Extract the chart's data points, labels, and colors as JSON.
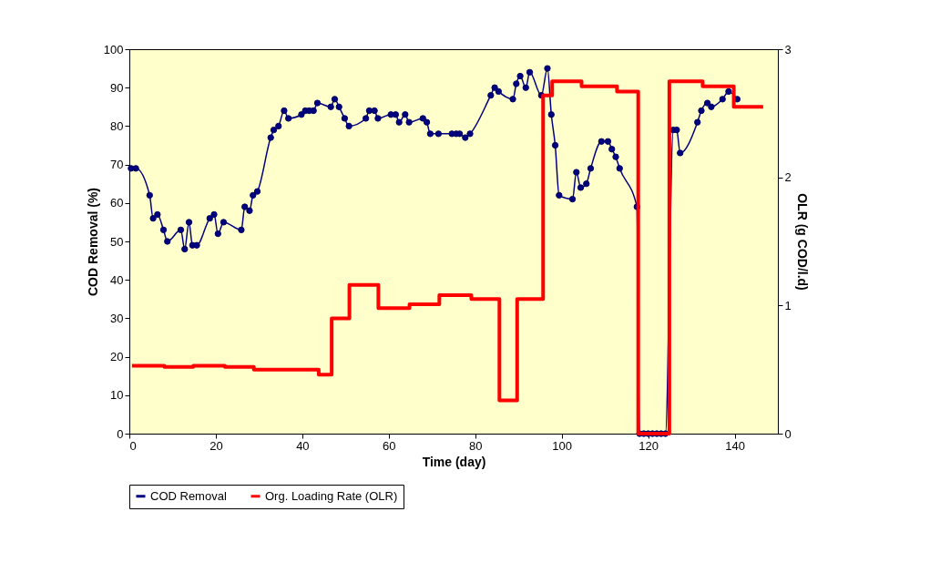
{
  "chart_data": {
    "type": "line",
    "xlabel": "Time (day)",
    "ylabel": "COD Removal (%)",
    "y2label": "OLR (g COD/l.d)",
    "xlim": [
      0,
      150
    ],
    "xticks": [
      0,
      20,
      40,
      60,
      80,
      100,
      120,
      140
    ],
    "ylim": [
      0,
      100
    ],
    "yticks": [
      0,
      10,
      20,
      30,
      40,
      50,
      60,
      70,
      80,
      90,
      100
    ],
    "y2lim": [
      0,
      3
    ],
    "y2ticks": [
      0,
      1,
      2,
      3
    ],
    "grid": false,
    "legend": "bottom",
    "series": [
      {
        "name": "COD Removal",
        "color": "#000080",
        "marker": "circle",
        "x": [
          0.4,
          1.5,
          4.7,
          5.5,
          6.5,
          7.9,
          8.8,
          11.9,
          12.8,
          13.8,
          14.6,
          15.6,
          18.6,
          19.6,
          20.5,
          21.8,
          25.9,
          26.7,
          27.8,
          28.6,
          29.6,
          32.7,
          33.4,
          34.5,
          35.8,
          36.8,
          39.8,
          40.7,
          41.6,
          42.6,
          43.5,
          46.6,
          47.5,
          48.5,
          49.8,
          50.8,
          54.7,
          55.5,
          56.7,
          57.5,
          60.5,
          61.6,
          62.4,
          63.8,
          64.7,
          67.9,
          68.8,
          69.6,
          71.5,
          74.6,
          75.6,
          76.4,
          77.7,
          78.8,
          83.6,
          84.5,
          85.4,
          88.7,
          89.5,
          90.4,
          91.7,
          92.6,
          95.3,
          96.7,
          97.6,
          98.5,
          99.4,
          102.5,
          103.4,
          104.4,
          105.7,
          106.7,
          109.2,
          110.7,
          111.6,
          112.5,
          113.4,
          117.4,
          118,
          119,
          120,
          121,
          122,
          123,
          124,
          125.8,
          126.6,
          127.4,
          131.4,
          132.3,
          133.7,
          134.6,
          137.2,
          138.6,
          140.6
        ],
        "values": [
          69,
          69,
          62,
          56,
          57,
          53,
          50,
          53,
          48,
          55,
          49,
          49,
          56,
          57,
          52,
          55,
          53,
          59,
          58,
          62,
          63,
          77,
          79,
          80,
          84,
          82,
          83,
          84,
          84,
          84,
          86,
          85,
          87,
          85,
          82,
          80,
          82,
          84,
          84,
          82,
          83,
          83,
          81,
          83,
          81,
          82,
          81,
          78,
          78,
          78,
          78,
          78,
          77,
          78,
          88,
          90,
          89,
          87,
          91,
          93,
          90,
          94,
          88,
          95,
          83,
          75,
          62,
          61,
          68,
          64,
          65,
          69,
          76,
          76,
          74,
          72,
          69,
          59,
          0,
          0,
          0,
          0,
          0,
          0,
          0,
          79,
          79,
          73,
          81,
          84,
          86,
          85,
          87,
          89,
          87
        ]
      },
      {
        "name": "Org. Loading Rate (OLR)",
        "type": "step",
        "axis": "y2",
        "color": "#ff0000",
        "x": [
          0.6,
          8.1,
          14.8,
          22.1,
          28.8,
          43.8,
          46.8,
          50.9,
          57.6,
          64.8,
          71.7,
          79.1,
          85.6,
          89.7,
          95.7,
          97.8,
          104.6,
          112.8,
          117.7,
          124.9,
          132.6,
          139.8,
          146.6
        ],
        "values": [
          0.53,
          0.52,
          0.53,
          0.52,
          0.5,
          0.46,
          0.9,
          1.16,
          0.98,
          1.01,
          1.08,
          1.05,
          0.26,
          1.05,
          2.64,
          2.75,
          2.71,
          2.67,
          0,
          2.75,
          2.71,
          2.55,
          2.55
        ]
      }
    ]
  }
}
